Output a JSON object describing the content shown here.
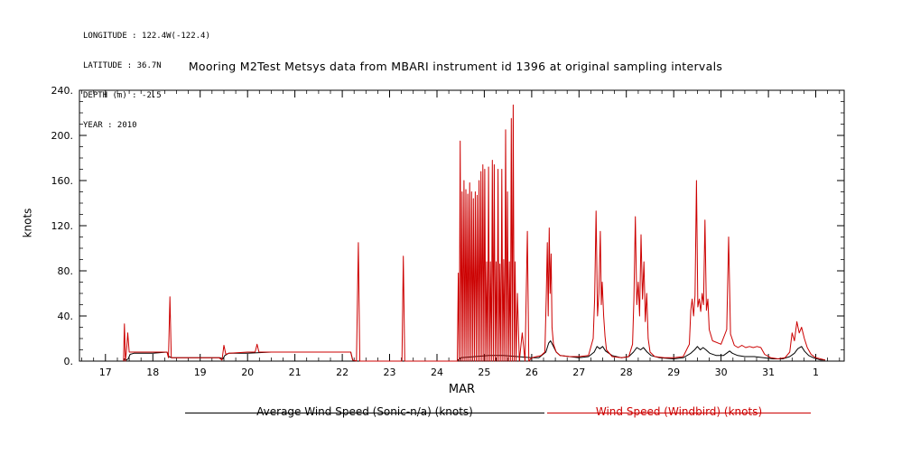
{
  "meta": {
    "lines": [
      "LONGITUDE : 122.4W(-122.4)",
      "LATITUDE : 36.7N",
      "DEPTH (m) : -2.5",
      "YEAR : 2010"
    ]
  },
  "title": "Mooring M2Test Metsys data from MBARI instrument id 1396 at original sampling intervals",
  "colors": {
    "red": "#cc0000",
    "black": "#000000",
    "background": "#ffffff"
  },
  "chart_data": {
    "type": "line",
    "title": "Mooring M2Test Metsys data from MBARI instrument id 1396 at original sampling intervals",
    "xlabel": "MAR",
    "ylabel": "knots",
    "xlim": [
      16.45,
      32.6
    ],
    "ylim": [
      0,
      240
    ],
    "grid": false,
    "legend_position": "bottom",
    "x_major_ticks": [
      17,
      18,
      19,
      20,
      21,
      22,
      23,
      24,
      25,
      26,
      27,
      28,
      29,
      30,
      31,
      32
    ],
    "x_tick_labels": [
      "17",
      "18",
      "19",
      "20",
      "21",
      "22",
      "23",
      "24",
      "25",
      "26",
      "27",
      "28",
      "29",
      "30",
      "31",
      "1"
    ],
    "y_major_ticks": [
      0,
      40,
      80,
      120,
      160,
      200,
      240
    ],
    "y_tick_labels": [
      "0.",
      "40.",
      "80.",
      "120.",
      "160.",
      "200.",
      "240."
    ],
    "series": [
      {
        "name": "Average Wind Speed (Sonic-n/a) (knots)",
        "color": "#000000",
        "points": [
          [
            17.38,
            0
          ],
          [
            17.4,
            2
          ],
          [
            17.44,
            1
          ],
          [
            17.48,
            2
          ],
          [
            17.52,
            6
          ],
          [
            17.6,
            7
          ],
          [
            18.0,
            7
          ],
          [
            18.3,
            8
          ],
          [
            18.34,
            4
          ],
          [
            18.4,
            3
          ],
          [
            19.0,
            3
          ],
          [
            19.42,
            3
          ],
          [
            19.48,
            2
          ],
          [
            19.52,
            5
          ],
          [
            19.6,
            7
          ],
          [
            20.0,
            7
          ],
          [
            20.5,
            8
          ],
          [
            21.0,
            8
          ],
          [
            21.5,
            8
          ],
          [
            22.0,
            8
          ],
          [
            22.18,
            8
          ],
          [
            22.22,
            1
          ],
          [
            22.3,
            0
          ],
          [
            23.0,
            0
          ],
          [
            23.5,
            0
          ],
          [
            24.0,
            0
          ],
          [
            24.42,
            0
          ],
          [
            24.5,
            3
          ],
          [
            24.8,
            4
          ],
          [
            25.1,
            5
          ],
          [
            25.4,
            5
          ],
          [
            25.7,
            4
          ],
          [
            26.0,
            3
          ],
          [
            26.15,
            3
          ],
          [
            26.3,
            8
          ],
          [
            26.36,
            16
          ],
          [
            26.4,
            18
          ],
          [
            26.46,
            13
          ],
          [
            26.52,
            8
          ],
          [
            26.6,
            5
          ],
          [
            26.8,
            4
          ],
          [
            27.0,
            3
          ],
          [
            27.2,
            4
          ],
          [
            27.32,
            8
          ],
          [
            27.38,
            13
          ],
          [
            27.44,
            11
          ],
          [
            27.5,
            13
          ],
          [
            27.56,
            9
          ],
          [
            27.7,
            5
          ],
          [
            27.9,
            3
          ],
          [
            28.05,
            4
          ],
          [
            28.15,
            8
          ],
          [
            28.22,
            12
          ],
          [
            28.3,
            10
          ],
          [
            28.36,
            12
          ],
          [
            28.44,
            8
          ],
          [
            28.52,
            5
          ],
          [
            28.7,
            3
          ],
          [
            29.0,
            2
          ],
          [
            29.2,
            3
          ],
          [
            29.36,
            7
          ],
          [
            29.44,
            10
          ],
          [
            29.5,
            13
          ],
          [
            29.56,
            10
          ],
          [
            29.62,
            12
          ],
          [
            29.68,
            10
          ],
          [
            29.76,
            7
          ],
          [
            29.9,
            5
          ],
          [
            30.05,
            5
          ],
          [
            30.18,
            9
          ],
          [
            30.24,
            7
          ],
          [
            30.35,
            5
          ],
          [
            30.5,
            4
          ],
          [
            30.7,
            4
          ],
          [
            30.9,
            3
          ],
          [
            31.1,
            2
          ],
          [
            31.3,
            2
          ],
          [
            31.45,
            4
          ],
          [
            31.55,
            7
          ],
          [
            31.62,
            11
          ],
          [
            31.7,
            13
          ],
          [
            31.76,
            9
          ],
          [
            31.85,
            5
          ],
          [
            31.95,
            3
          ],
          [
            32.1,
            1
          ],
          [
            32.2,
            1
          ]
        ]
      },
      {
        "name": "Wind Speed (Windbird) (knots)",
        "color": "#cc0000",
        "points": [
          [
            17.38,
            0
          ],
          [
            17.4,
            33
          ],
          [
            17.42,
            0
          ],
          [
            17.45,
            12
          ],
          [
            17.47,
            25
          ],
          [
            17.5,
            8
          ],
          [
            17.6,
            8
          ],
          [
            18.0,
            8
          ],
          [
            18.3,
            8
          ],
          [
            18.33,
            3
          ],
          [
            18.36,
            57
          ],
          [
            18.39,
            3
          ],
          [
            18.6,
            3
          ],
          [
            19.0,
            3
          ],
          [
            19.4,
            3
          ],
          [
            19.46,
            1
          ],
          [
            19.5,
            14
          ],
          [
            19.54,
            6
          ],
          [
            19.6,
            7
          ],
          [
            20.0,
            8
          ],
          [
            20.16,
            8
          ],
          [
            20.2,
            15
          ],
          [
            20.24,
            8
          ],
          [
            20.6,
            8
          ],
          [
            21.0,
            8
          ],
          [
            21.5,
            8
          ],
          [
            22.0,
            8
          ],
          [
            22.18,
            8
          ],
          [
            22.22,
            1
          ],
          [
            22.3,
            0
          ],
          [
            22.34,
            105
          ],
          [
            22.37,
            0
          ],
          [
            22.6,
            0
          ],
          [
            23.0,
            0
          ],
          [
            23.26,
            0
          ],
          [
            23.29,
            93
          ],
          [
            23.32,
            0
          ],
          [
            23.6,
            0
          ],
          [
            24.0,
            0
          ],
          [
            24.43,
            0
          ],
          [
            24.45,
            78
          ],
          [
            24.47,
            0
          ],
          [
            24.49,
            195
          ],
          [
            24.51,
            0
          ],
          [
            24.53,
            150
          ],
          [
            24.55,
            0
          ],
          [
            24.57,
            160
          ],
          [
            24.59,
            0
          ],
          [
            24.61,
            152
          ],
          [
            24.63,
            0
          ],
          [
            24.65,
            148
          ],
          [
            24.67,
            0
          ],
          [
            24.69,
            158
          ],
          [
            24.71,
            0
          ],
          [
            24.73,
            150
          ],
          [
            24.75,
            0
          ],
          [
            24.77,
            144
          ],
          [
            24.79,
            0
          ],
          [
            24.81,
            150
          ],
          [
            24.83,
            0
          ],
          [
            24.85,
            147
          ],
          [
            24.87,
            0
          ],
          [
            24.89,
            160
          ],
          [
            24.91,
            0
          ],
          [
            24.93,
            168
          ],
          [
            24.95,
            0
          ],
          [
            24.97,
            174
          ],
          [
            24.99,
            0
          ],
          [
            25.01,
            170
          ],
          [
            25.03,
            0
          ],
          [
            25.05,
            88
          ],
          [
            25.07,
            0
          ],
          [
            25.09,
            172
          ],
          [
            25.11,
            0
          ],
          [
            25.13,
            88
          ],
          [
            25.15,
            0
          ],
          [
            25.17,
            178
          ],
          [
            25.19,
            0
          ],
          [
            25.21,
            174
          ],
          [
            25.23,
            0
          ],
          [
            25.25,
            88
          ],
          [
            25.27,
            0
          ],
          [
            25.29,
            170
          ],
          [
            25.31,
            0
          ],
          [
            25.33,
            86
          ],
          [
            25.35,
            0
          ],
          [
            25.37,
            170
          ],
          [
            25.39,
            0
          ],
          [
            25.41,
            90
          ],
          [
            25.43,
            0
          ],
          [
            25.45,
            205
          ],
          [
            25.47,
            0
          ],
          [
            25.49,
            150
          ],
          [
            25.51,
            0
          ],
          [
            25.53,
            88
          ],
          [
            25.55,
            0
          ],
          [
            25.57,
            215
          ],
          [
            25.59,
            0
          ],
          [
            25.61,
            227
          ],
          [
            25.63,
            0
          ],
          [
            25.65,
            88
          ],
          [
            25.67,
            0
          ],
          [
            25.7,
            60
          ],
          [
            25.74,
            0
          ],
          [
            25.8,
            25
          ],
          [
            25.86,
            0
          ],
          [
            25.91,
            115
          ],
          [
            25.94,
            0
          ],
          [
            26.0,
            3
          ],
          [
            26.1,
            4
          ],
          [
            26.2,
            5
          ],
          [
            26.28,
            8
          ],
          [
            26.31,
            60
          ],
          [
            26.33,
            105
          ],
          [
            26.35,
            40
          ],
          [
            26.37,
            118
          ],
          [
            26.39,
            60
          ],
          [
            26.41,
            95
          ],
          [
            26.43,
            30
          ],
          [
            26.46,
            15
          ],
          [
            26.52,
            8
          ],
          [
            26.6,
            5
          ],
          [
            26.8,
            4
          ],
          [
            27.0,
            4
          ],
          [
            27.2,
            5
          ],
          [
            27.3,
            20
          ],
          [
            27.33,
            55
          ],
          [
            27.36,
            133
          ],
          [
            27.39,
            40
          ],
          [
            27.42,
            60
          ],
          [
            27.45,
            115
          ],
          [
            27.47,
            50
          ],
          [
            27.49,
            70
          ],
          [
            27.52,
            40
          ],
          [
            27.55,
            22
          ],
          [
            27.58,
            10
          ],
          [
            27.7,
            4
          ],
          [
            27.9,
            3
          ],
          [
            28.05,
            4
          ],
          [
            28.13,
            15
          ],
          [
            28.16,
            55
          ],
          [
            28.19,
            128
          ],
          [
            28.22,
            50
          ],
          [
            28.25,
            70
          ],
          [
            28.28,
            40
          ],
          [
            28.31,
            112
          ],
          [
            28.34,
            55
          ],
          [
            28.37,
            88
          ],
          [
            28.4,
            35
          ],
          [
            28.43,
            60
          ],
          [
            28.46,
            20
          ],
          [
            28.5,
            8
          ],
          [
            28.6,
            4
          ],
          [
            28.8,
            3
          ],
          [
            29.0,
            3
          ],
          [
            29.2,
            4
          ],
          [
            29.33,
            15
          ],
          [
            29.36,
            45
          ],
          [
            29.39,
            55
          ],
          [
            29.42,
            40
          ],
          [
            29.45,
            58
          ],
          [
            29.48,
            160
          ],
          [
            29.51,
            48
          ],
          [
            29.54,
            55
          ],
          [
            29.57,
            44
          ],
          [
            29.6,
            60
          ],
          [
            29.63,
            50
          ],
          [
            29.66,
            125
          ],
          [
            29.69,
            45
          ],
          [
            29.72,
            55
          ],
          [
            29.75,
            28
          ],
          [
            29.82,
            18
          ],
          [
            30.0,
            15
          ],
          [
            30.12,
            28
          ],
          [
            30.16,
            110
          ],
          [
            30.2,
            24
          ],
          [
            30.28,
            14
          ],
          [
            30.36,
            12
          ],
          [
            30.44,
            14
          ],
          [
            30.52,
            12
          ],
          [
            30.6,
            13
          ],
          [
            30.68,
            12
          ],
          [
            30.76,
            13
          ],
          [
            30.84,
            12
          ],
          [
            30.92,
            6
          ],
          [
            31.05,
            3
          ],
          [
            31.2,
            2
          ],
          [
            31.35,
            3
          ],
          [
            31.45,
            8
          ],
          [
            31.5,
            25
          ],
          [
            31.55,
            18
          ],
          [
            31.6,
            35
          ],
          [
            31.65,
            25
          ],
          [
            31.7,
            30
          ],
          [
            31.76,
            20
          ],
          [
            31.82,
            12
          ],
          [
            31.9,
            6
          ],
          [
            32.0,
            3
          ],
          [
            32.1,
            2
          ],
          [
            32.2,
            1
          ]
        ]
      }
    ]
  }
}
